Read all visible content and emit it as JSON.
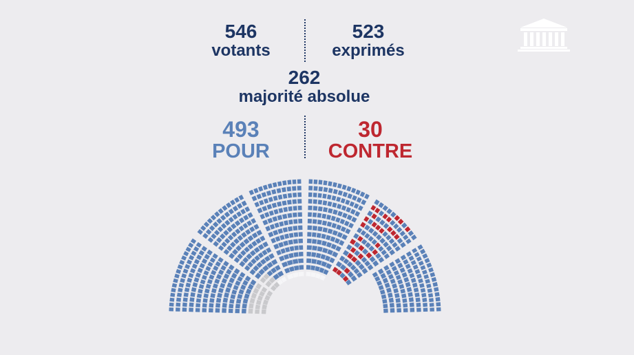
{
  "votants": {
    "value": "546",
    "label": "votants"
  },
  "exprimes": {
    "value": "523",
    "label": "exprimés"
  },
  "majorite": {
    "value": "262",
    "label": "majorité absolue"
  },
  "pour": {
    "value": "493",
    "label": "POUR"
  },
  "contre": {
    "value": "30",
    "label": "CONTRE"
  },
  "colors": {
    "navy": "#1d3563",
    "pour": "#5a81b8",
    "contre": "#be2730",
    "abstention": "#c9c9cc",
    "non_votant": "#f6f6f8",
    "background": "#edecef"
  },
  "logo_icon": "assemblee-nationale-building-icon",
  "seat_counts": {
    "pour": 493,
    "contre": 30,
    "abstention": 23,
    "non_votant": 31
  }
}
